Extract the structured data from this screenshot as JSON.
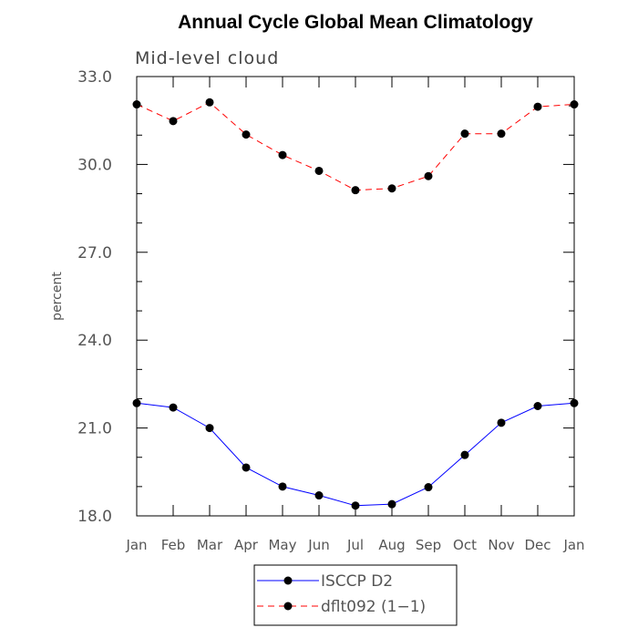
{
  "chart_data": {
    "type": "line",
    "title": "Annual Cycle Global Mean Climatology",
    "subtitle": "Mid-level cloud",
    "xlabel": "",
    "ylabel": "percent",
    "categories": [
      "Jan",
      "Feb",
      "Mar",
      "Apr",
      "May",
      "Jun",
      "Jul",
      "Aug",
      "Sep",
      "Oct",
      "Nov",
      "Dec",
      "Jan"
    ],
    "ylim": [
      18.0,
      33.0
    ],
    "yticks": [
      18.0,
      21.0,
      24.0,
      27.0,
      30.0,
      33.0
    ],
    "ytick_labels": [
      "18.0",
      "21.0",
      "24.0",
      "27.0",
      "30.0",
      "33.0"
    ],
    "y_minor_step": 1.0,
    "series": [
      {
        "name": "ISCCP D2",
        "color": "#0000ff",
        "dash": "solid",
        "values": [
          21.85,
          21.7,
          21.0,
          19.65,
          19.0,
          18.7,
          18.35,
          18.4,
          18.98,
          20.08,
          21.18,
          21.75,
          21.85
        ]
      },
      {
        "name": "dflt092 (1-1)",
        "color": "#ff0000",
        "dash": "dashed",
        "values": [
          32.05,
          31.48,
          32.12,
          31.02,
          30.32,
          29.78,
          29.12,
          29.18,
          29.6,
          31.05,
          31.05,
          31.97,
          32.05
        ]
      }
    ],
    "legend": {
      "position": "bottom-center",
      "entries": [
        "ISCCP D2",
        "dflt092 (1−1)"
      ]
    }
  }
}
